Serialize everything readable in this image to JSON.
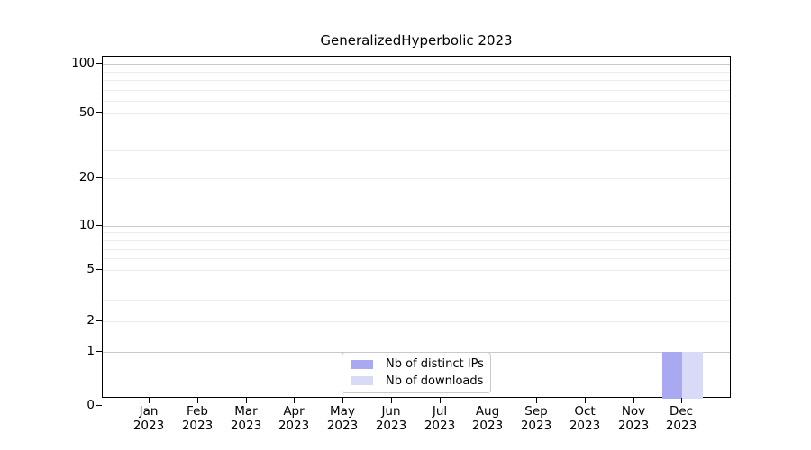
{
  "title": "GeneralizedHyperbolic 2023",
  "background_color": "#ffffff",
  "chart_data": {
    "type": "bar",
    "title": "GeneralizedHyperbolic 2023",
    "categories": [
      "Jan 2023",
      "Feb 2023",
      "Mar 2023",
      "Apr 2023",
      "May 2023",
      "Jun 2023",
      "Jul 2023",
      "Aug 2023",
      "Sep 2023",
      "Oct 2023",
      "Nov 2023",
      "Dec 2023"
    ],
    "series": [
      {
        "name": "Nb of distinct IPs",
        "color": "#a9a9f1",
        "values": [
          0,
          0,
          0,
          0,
          0,
          0,
          0,
          0,
          0,
          0,
          0,
          1
        ]
      },
      {
        "name": "Nb of downloads",
        "color": "#d9d9f8",
        "values": [
          0,
          0,
          0,
          0,
          0,
          0,
          0,
          0,
          0,
          0,
          0,
          1
        ]
      }
    ],
    "xlabel": "",
    "ylabel": "",
    "yticks": [
      0,
      1,
      2,
      5,
      10,
      20,
      50,
      100
    ],
    "major_gridlines": [
      1,
      10,
      100
    ],
    "minor_gridlines": [
      2,
      3,
      4,
      5,
      6,
      7,
      8,
      9,
      20,
      30,
      40,
      50,
      60,
      70,
      80,
      90
    ],
    "scale": "log-like",
    "ylim": [
      0,
      111
    ],
    "grid": true,
    "legend_position": "lower center",
    "grid_major_color": "#c9c9c9",
    "grid_minor_color": "#ececec",
    "axis_color": "#000000",
    "text_color": "#000000"
  }
}
